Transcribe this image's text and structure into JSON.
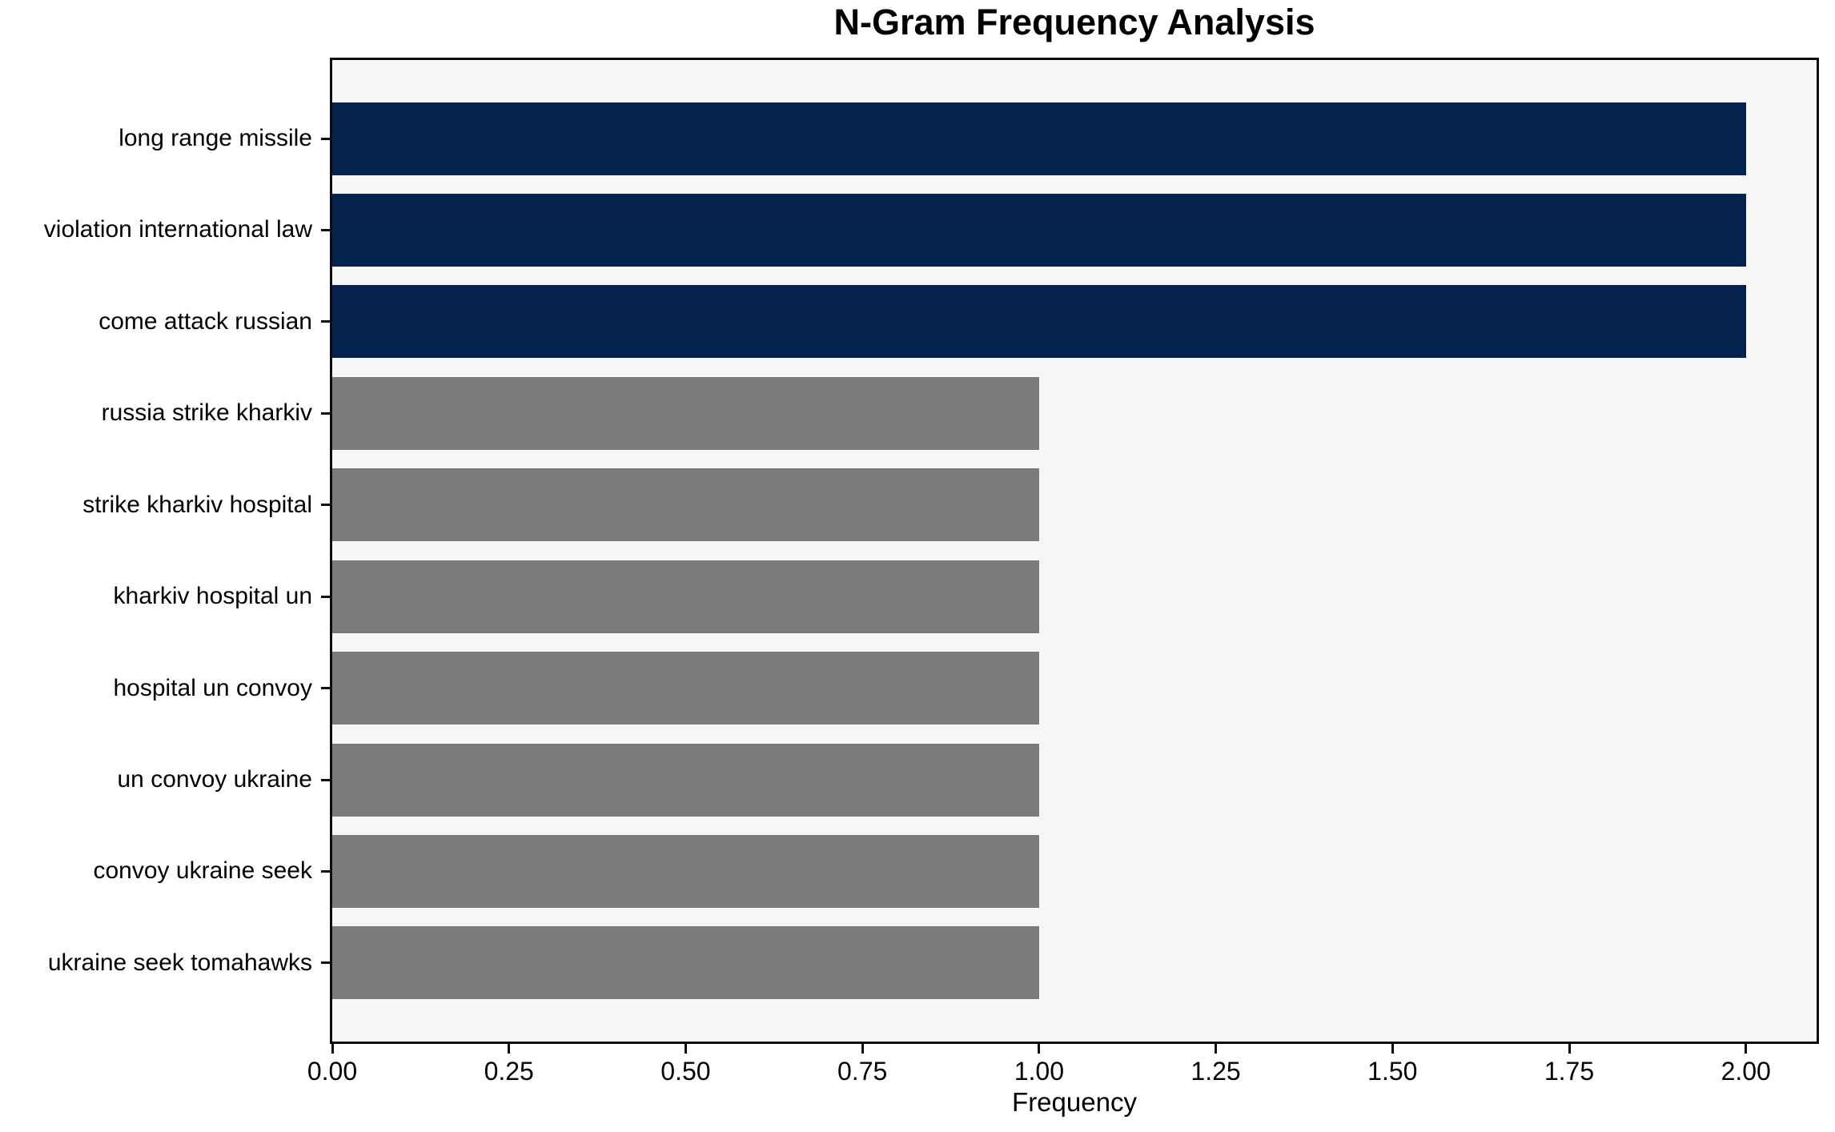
{
  "chart_data": {
    "type": "bar",
    "orientation": "horizontal",
    "title": "N-Gram Frequency Analysis",
    "xlabel": "Frequency",
    "ylabel": "",
    "categories": [
      "long range missile",
      "violation international law",
      "come attack russian",
      "russia strike kharkiv",
      "strike kharkiv hospital",
      "kharkiv hospital un",
      "hospital un convoy",
      "un convoy ukraine",
      "convoy ukraine seek",
      "ukraine seek tomahawks"
    ],
    "values": [
      2,
      2,
      2,
      1,
      1,
      1,
      1,
      1,
      1,
      1
    ],
    "bar_colors": [
      "#03224d",
      "#03224d",
      "#03224d",
      "#7b7b79",
      "#7b7b79",
      "#7b7b79",
      "#7b7b79",
      "#7b7b79",
      "#7b7b79",
      "#7b7b79"
    ],
    "highlight_color": "#03224d",
    "default_color": "#7b7b79",
    "xlim": [
      0,
      2.1
    ],
    "xticks": [
      "0.00",
      "0.25",
      "0.50",
      "0.75",
      "1.00",
      "1.25",
      "1.50",
      "1.75",
      "2.00"
    ],
    "xtick_values": [
      0,
      0.25,
      0.5,
      0.75,
      1.0,
      1.25,
      1.5,
      1.75,
      2.0
    ],
    "grid": false,
    "legend": null,
    "plot_bg": "#f6f6f5",
    "axis_color": "#0d0d0d",
    "text_color": "#000000"
  }
}
